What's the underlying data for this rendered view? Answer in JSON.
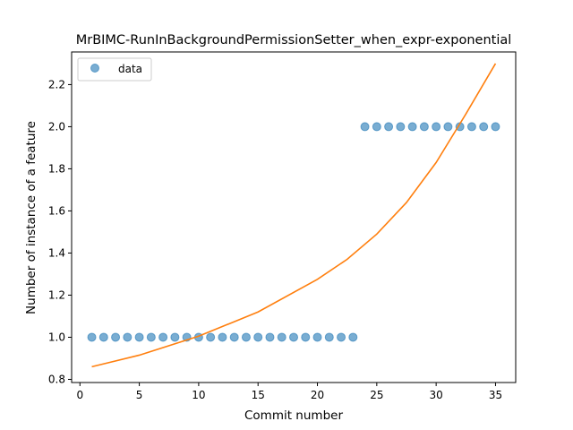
{
  "chart_data": {
    "type": "scatter",
    "title": "MrBIMC-RunInBackgroundPermissionSetter_when_expr-exponential",
    "xlabel": "Commit number",
    "ylabel": "Number of instance of a feature",
    "xlim": [
      -0.7,
      36.7
    ],
    "ylim": [
      0.785,
      2.355
    ],
    "xticks": [
      0,
      5,
      10,
      15,
      20,
      25,
      30,
      35
    ],
    "yticks": [
      0.8,
      1.0,
      1.2,
      1.4,
      1.6,
      1.8,
      2.0,
      2.2
    ],
    "xtick_labels": [
      "0",
      "5",
      "10",
      "15",
      "20",
      "25",
      "30",
      "35"
    ],
    "ytick_labels": [
      "0.8",
      "1.0",
      "1.2",
      "1.4",
      "1.6",
      "1.8",
      "2.0",
      "2.2"
    ],
    "grid": false,
    "legend_position": "top-left",
    "series": [
      {
        "name": "data",
        "kind": "points",
        "color": "#1f77b4",
        "x": [
          1,
          2,
          3,
          4,
          5,
          6,
          7,
          8,
          9,
          10,
          11,
          12,
          13,
          14,
          15,
          16,
          17,
          18,
          19,
          20,
          21,
          22,
          23,
          24,
          25,
          26,
          27,
          28,
          29,
          30,
          31,
          32,
          33,
          34,
          35
        ],
        "y": [
          1,
          1,
          1,
          1,
          1,
          1,
          1,
          1,
          1,
          1,
          1,
          1,
          1,
          1,
          1,
          1,
          1,
          1,
          1,
          1,
          1,
          1,
          1,
          2,
          2,
          2,
          2,
          2,
          2,
          2,
          2,
          2,
          2,
          2,
          2
        ]
      },
      {
        "kind": "fit-line",
        "color": "#ff7f0e",
        "x": [
          1,
          5,
          10,
          15,
          20,
          22.5,
          25,
          27.5,
          30,
          32.5,
          35
        ],
        "y": [
          0.86,
          0.915,
          1.005,
          1.12,
          1.275,
          1.37,
          1.49,
          1.64,
          1.83,
          2.06,
          2.3
        ]
      }
    ]
  }
}
